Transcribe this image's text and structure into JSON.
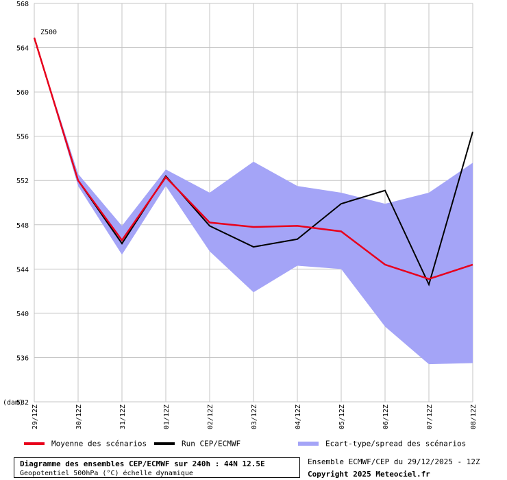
{
  "chart_data": {
    "type": "line",
    "series_label": "Z500",
    "unit_label": "(dam)",
    "x": [
      "29/12Z",
      "30/12Z",
      "31/12Z",
      "01/12Z",
      "02/12Z",
      "03/12Z",
      "04/12Z",
      "05/12Z",
      "06/12Z",
      "07/12Z",
      "08/12Z"
    ],
    "y_ticks": [
      "568",
      "564",
      "560",
      "556",
      "552",
      "548",
      "544",
      "540",
      "536",
      "532"
    ],
    "ylim": [
      532,
      568
    ],
    "grid": true,
    "series": [
      {
        "name": "Moyenne des scénarios",
        "color": "#e8001c",
        "values": [
          564.9,
          552.0,
          546.6,
          552.3,
          548.2,
          547.8,
          547.9,
          547.4,
          544.4,
          543.1,
          544.4
        ]
      },
      {
        "name": "Run CEP/ECMWF",
        "color": "#000000",
        "values": [
          564.9,
          552.0,
          546.3,
          552.4,
          547.9,
          546.0,
          546.7,
          549.9,
          551.1,
          542.6,
          556.4
        ]
      }
    ],
    "spread": {
      "name": "Ecart-type/spread des scénarios",
      "color": "#a4a4f7",
      "upper": [
        564.9,
        552.6,
        547.9,
        553.0,
        550.9,
        553.7,
        551.5,
        550.9,
        549.9,
        550.9,
        553.6
      ],
      "lower": [
        564.9,
        551.5,
        545.3,
        551.5,
        545.6,
        541.9,
        544.3,
        544.0,
        538.8,
        535.4,
        535.5
      ]
    }
  },
  "footer": {
    "title": "Diagramme des ensembles CEP/ECMWF sur 240h : 44N 12.5E",
    "subtitle": "Geopotentiel 500hPa (°C) échelle dynamique",
    "run_info": "Ensemble ECMWF/CEP du 29/12/2025 - 12Z",
    "copyright": "Copyright 2025 Meteociel.fr"
  }
}
